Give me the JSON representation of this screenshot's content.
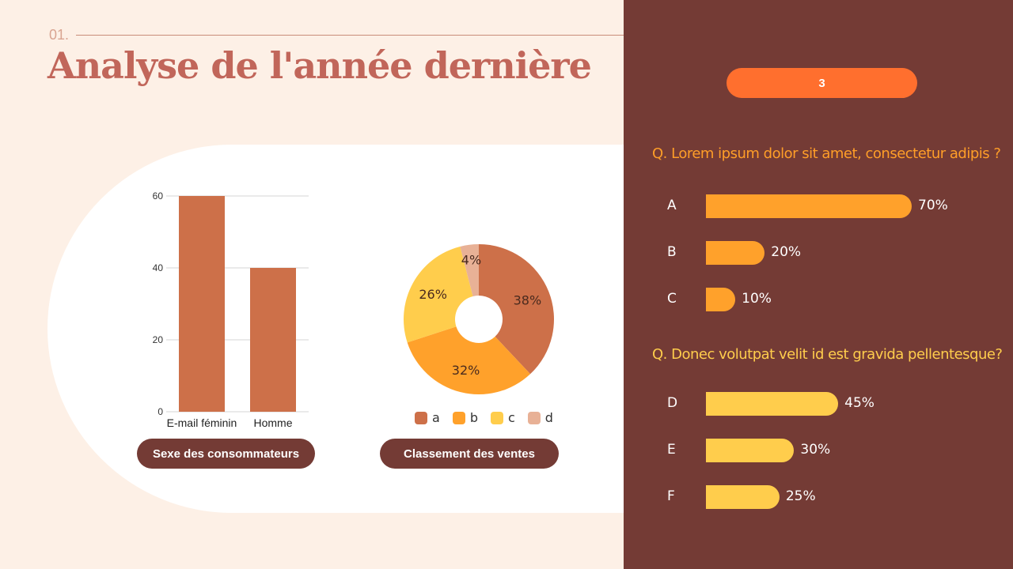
{
  "header": {
    "slide_number": "01.",
    "title": "Analyse de l'année dernière"
  },
  "colors": {
    "background": "#fdf0e6",
    "panel": "#743b35",
    "accent_orange": "#ff6f2e",
    "bar": "#cd7049",
    "pie_a": "#cd7049",
    "pie_b": "#ffa12b",
    "pie_c": "#ffcd4c",
    "pie_d": "#e8b196",
    "q1_bar": "#ffa12b",
    "q2_bar": "#ffcd4c"
  },
  "chart_data": [
    {
      "type": "bar",
      "categories": [
        "E-mail féminin",
        "Homme"
      ],
      "values": [
        60,
        40
      ],
      "yticks": [
        0,
        20,
        40,
        60
      ],
      "ylim": [
        0,
        60
      ],
      "grid": true,
      "caption": "Sexe des consommateurs"
    },
    {
      "type": "pie",
      "donut": true,
      "categories": [
        "a",
        "b",
        "c",
        "d"
      ],
      "values": [
        38,
        32,
        26,
        4
      ],
      "labels": [
        "38%",
        "32%",
        "26%",
        "4%"
      ],
      "legend": "bottom",
      "caption": "Classement des ventes"
    }
  ],
  "poll": {
    "counter": "3",
    "questions": [
      {
        "text": "Q. Lorem ipsum dolor sit amet, consectetur adipis ?",
        "options": [
          {
            "label": "A",
            "value": 70,
            "value_label": "70%"
          },
          {
            "label": "B",
            "value": 20,
            "value_label": "20%"
          },
          {
            "label": "C",
            "value": 10,
            "value_label": "10%"
          }
        ]
      },
      {
        "text": "Q. Donec volutpat velit id est gravida pellentesque?",
        "options": [
          {
            "label": "D",
            "value": 45,
            "value_label": "45%"
          },
          {
            "label": "E",
            "value": 30,
            "value_label": "30%"
          },
          {
            "label": "F",
            "value": 25,
            "value_label": "25%"
          }
        ]
      }
    ]
  }
}
